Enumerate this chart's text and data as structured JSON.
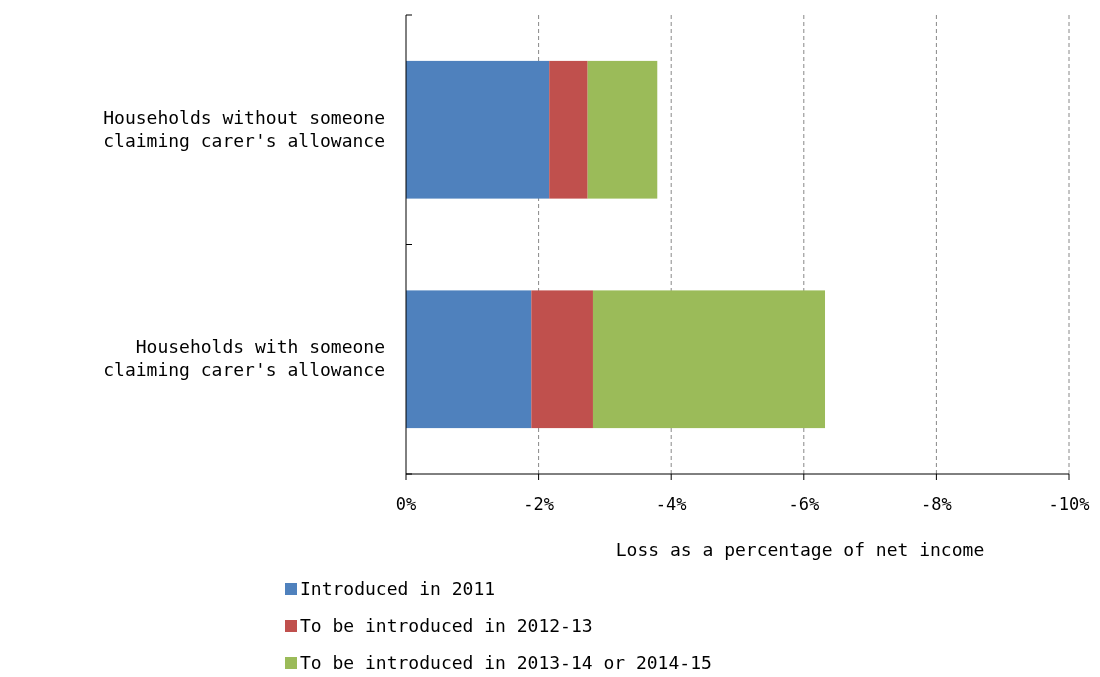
{
  "chart_data": {
    "type": "bar",
    "orientation": "horizontal",
    "stacked": true,
    "categories": [
      "Households without someone\nclaiming carer's allowance",
      "Households with someone\nclaiming carer's allowance"
    ],
    "series": [
      {
        "name": "Introduced in 2011",
        "color": "#4f81bd",
        "values": [
          -2.16,
          -1.89
        ]
      },
      {
        "name": "To be introduced in 2012-13",
        "color": "#c0504d",
        "values": [
          -0.58,
          -0.93
        ]
      },
      {
        "name": "To be introduced in 2013-14 or 2014-15",
        "color": "#9bbb59",
        "values": [
          -1.05,
          -3.5
        ]
      }
    ],
    "xlim": [
      0,
      -10
    ],
    "xticks": [
      {
        "value": 0,
        "label": "0%"
      },
      {
        "value": -2,
        "label": "-2%"
      },
      {
        "value": -4,
        "label": "-4%"
      },
      {
        "value": -6,
        "label": "-6%"
      },
      {
        "value": -8,
        "label": "-8%"
      },
      {
        "value": -10,
        "label": "-10%"
      }
    ],
    "xlabel": "Loss as a percentage of net income",
    "grid": "x",
    "legend": "bottom"
  }
}
